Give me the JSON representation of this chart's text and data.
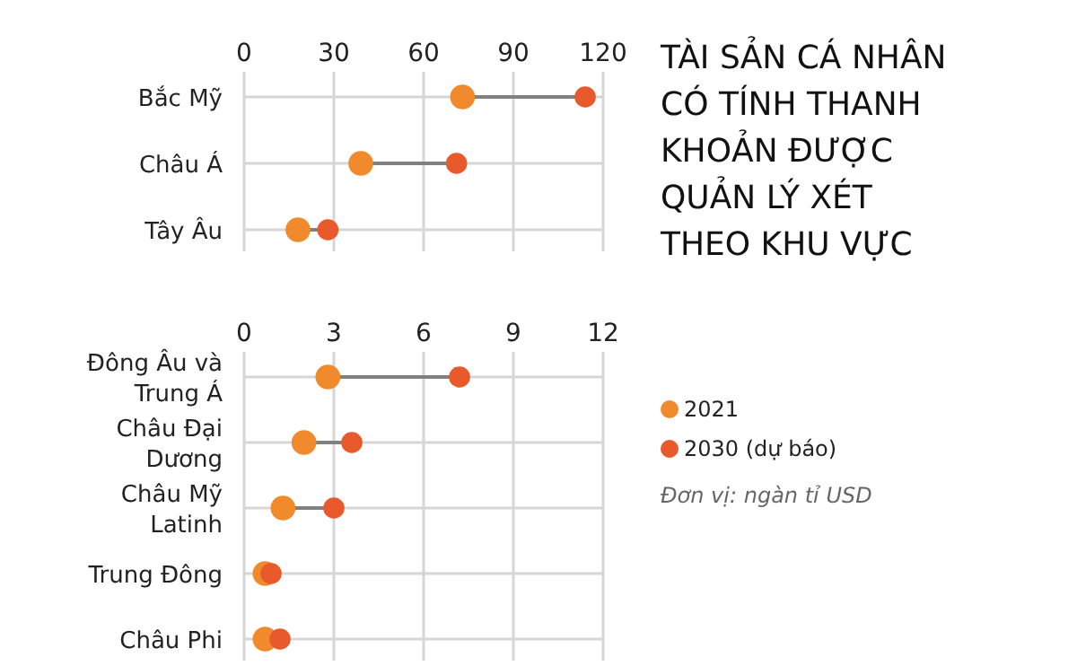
{
  "chart_data": [
    {
      "type": "scatter",
      "categories": [
        "Bắc Mỹ",
        "Châu Á",
        "Tây Âu"
      ],
      "orientation": "horizontal",
      "series": [
        {
          "name": "2021",
          "color": "#f08a2c",
          "values": [
            73,
            39,
            18
          ]
        },
        {
          "name": "2030 (dự báo)",
          "color": "#e85a2c",
          "values": [
            114,
            71,
            28
          ]
        }
      ],
      "xlim": [
        0,
        120
      ],
      "xticks": [
        0,
        30,
        60,
        90,
        120
      ],
      "grid": true,
      "legend": "right",
      "marker": "circle"
    },
    {
      "type": "scatter",
      "categories": [
        "Đông Âu và Trung Á",
        "Châu Đại Dương",
        "Châu Mỹ Latinh",
        "Trung Đông",
        "Châu Phi"
      ],
      "orientation": "horizontal",
      "series": [
        {
          "color": "#f08a2c",
          "values": [
            2.8,
            2.0,
            1.3,
            0.7,
            0.7
          ]
        },
        {
          "color": "#e85a2c",
          "values": [
            7.2,
            3.6,
            3.0,
            0.9,
            1.2
          ]
        }
      ],
      "xlim": [
        0,
        12
      ],
      "xticks": [
        0,
        3,
        6,
        9,
        12
      ],
      "grid": true,
      "marker": "circle"
    },
    {
      "type": "other",
      "title": "TÀI SẢN CÁ NHÂN CÓ TÍNH THANH KHOẢN ĐƯỢC QUẢN LÝ XÉT THEO KHU VỰC",
      "annotations": [
        "Đơn vị: ngàn tỉ USD"
      ]
    }
  ]
}
